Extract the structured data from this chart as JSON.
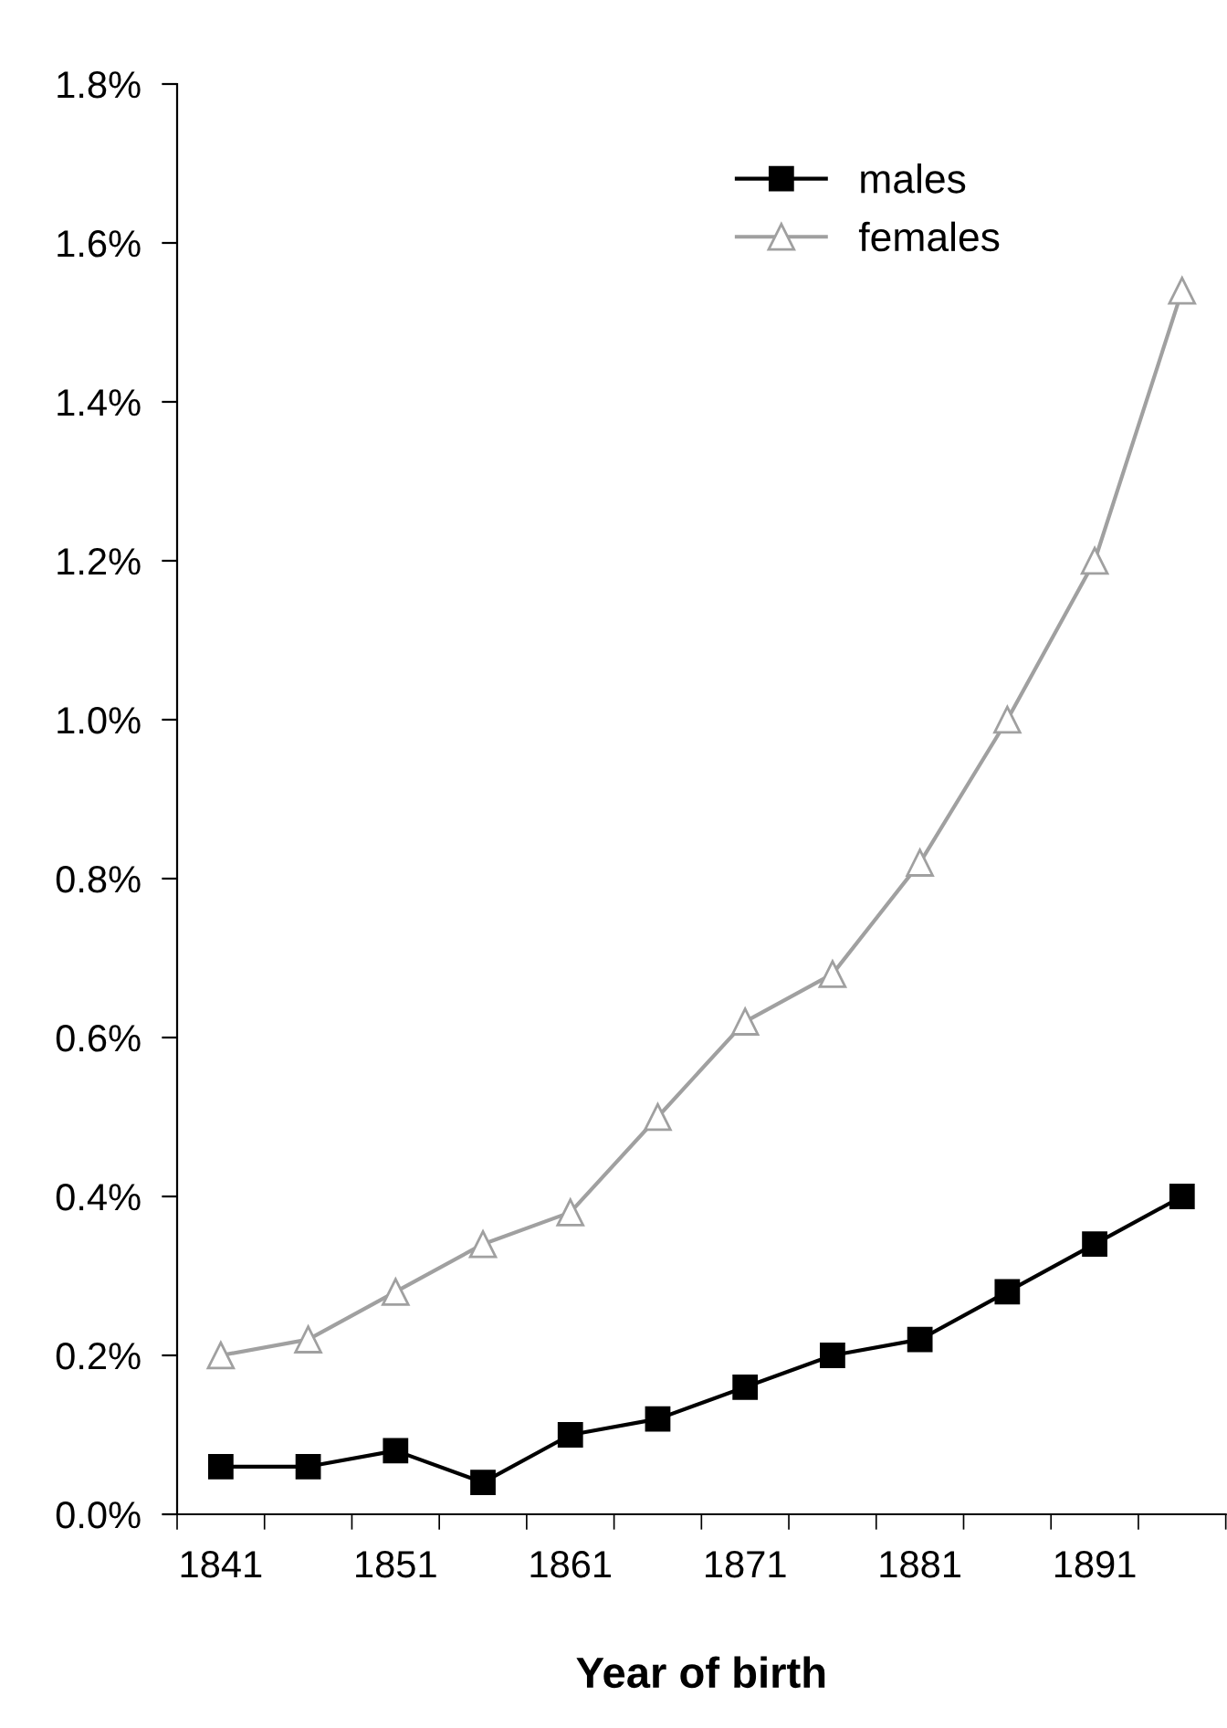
{
  "chart_data": {
    "type": "line",
    "xlabel": "Year of birth",
    "categories": [
      "1841",
      null,
      "1851",
      null,
      "1861",
      null,
      "1871",
      null,
      "1881",
      null,
      "1891",
      null
    ],
    "series": [
      {
        "name": "males",
        "color": "#000000",
        "marker": "square",
        "values": [
          0.06,
          0.06,
          0.08,
          0.04,
          0.1,
          0.12,
          0.16,
          0.2,
          0.22,
          0.28,
          0.34,
          0.4
        ]
      },
      {
        "name": "females",
        "color": "#a0a0a0",
        "marker": "triangle",
        "values": [
          0.2,
          0.22,
          0.28,
          0.34,
          0.38,
          0.5,
          0.62,
          0.68,
          0.82,
          1.0,
          1.2,
          1.54
        ]
      }
    ],
    "ylim": [
      0,
      1.8
    ],
    "yticks": [
      {
        "value": 0,
        "label": "0.0%"
      },
      {
        "value": 0.2,
        "label": "0.2%"
      },
      {
        "value": 0.4,
        "label": "0.4%"
      },
      {
        "value": 0.6,
        "label": "0.6%"
      },
      {
        "value": 0.8,
        "label": "0.8%"
      },
      {
        "value": 1.0,
        "label": "1.0%"
      },
      {
        "value": 1.2,
        "label": "1.2%"
      },
      {
        "value": 1.4,
        "label": "1.4%"
      },
      {
        "value": 1.6,
        "label": "1.6%"
      },
      {
        "value": 1.8,
        "label": "1.8%"
      }
    ],
    "grid": false,
    "legend": "top right",
    "line_style": "solid"
  }
}
